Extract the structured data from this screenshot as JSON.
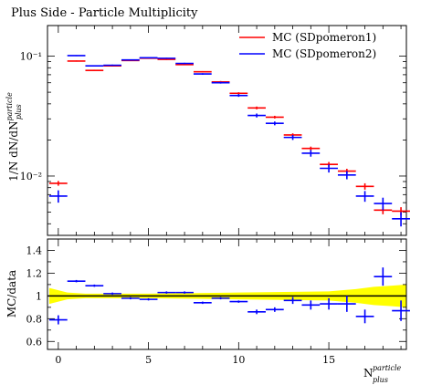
{
  "chart_data": [
    {
      "type": "scatter",
      "title": "Plus Side - Particle Multiplicity",
      "ylabel": "1/N dN/dN",
      "ylabel_sup": "particle",
      "ylabel_sub": "plus",
      "yscale": "log",
      "ylim": [
        0.0032,
        0.18
      ],
      "xlim": [
        -0.6,
        19.3
      ],
      "y_tick_labels": [
        {
          "value": 0.1,
          "label": "10⁻¹"
        },
        {
          "value": 0.01,
          "label": "10⁻²"
        }
      ],
      "legend_position": "top-right",
      "series": [
        {
          "name": "MC (SDpomeron1)",
          "color": "#ff0000",
          "x": [
            0,
            1,
            2,
            3,
            4,
            5,
            6,
            7,
            8,
            9,
            10,
            11,
            12,
            13,
            14,
            15,
            16,
            17,
            18,
            19
          ],
          "y": [
            0.0087,
            0.091,
            0.076,
            0.083,
            0.092,
            0.096,
            0.094,
            0.085,
            0.074,
            0.061,
            0.049,
            0.037,
            0.031,
            0.022,
            0.017,
            0.0125,
            0.011,
            0.0082,
            0.0052,
            0.0051
          ],
          "yerr": [
            0.0004,
            0.001,
            0.001,
            0.001,
            0.001,
            0.001,
            0.001,
            0.001,
            0.001,
            0.001,
            0.001,
            0.001,
            0.0008,
            0.0007,
            0.0006,
            0.0006,
            0.0005,
            0.0005,
            0.0004,
            0.0004
          ]
        },
        {
          "name": "MC (SDpomeron2)",
          "color": "#0000ff",
          "x": [
            0,
            1,
            2,
            3,
            4,
            5,
            6,
            7,
            8,
            9,
            10,
            11,
            12,
            13,
            14,
            15,
            16,
            17,
            18,
            19
          ],
          "y": [
            0.0068,
            0.101,
            0.083,
            0.084,
            0.093,
            0.097,
            0.096,
            0.087,
            0.071,
            0.06,
            0.047,
            0.032,
            0.0275,
            0.021,
            0.0155,
            0.0116,
            0.0102,
            0.0068,
            0.0059,
            0.0044
          ],
          "yerr": [
            0.0008,
            0.001,
            0.001,
            0.001,
            0.001,
            0.001,
            0.001,
            0.001,
            0.001,
            0.001,
            0.0012,
            0.0012,
            0.001,
            0.001,
            0.001,
            0.0009,
            0.0008,
            0.0007,
            0.0007,
            0.0006
          ]
        }
      ]
    },
    {
      "type": "scatter",
      "ylabel": "MC/data",
      "xlabel": "N",
      "xlabel_sup": "particle",
      "xlabel_sub": "plus",
      "ylim": [
        0.53,
        1.5
      ],
      "xlim": [
        -0.6,
        19.3
      ],
      "x_ticks": [
        0,
        5,
        10,
        15
      ],
      "y_ticks": [
        0.6,
        0.8,
        1,
        1.2,
        1.4
      ],
      "band": {
        "color": "#ffff00",
        "x": [
          -0.5,
          0.5,
          1.5,
          5,
          10,
          15,
          16.5,
          17.5,
          18.5,
          19.3
        ],
        "low": [
          0.93,
          0.97,
          0.98,
          0.98,
          0.97,
          0.96,
          0.94,
          0.92,
          0.91,
          0.9
        ],
        "high": [
          1.07,
          1.03,
          1.02,
          1.02,
          1.03,
          1.04,
          1.06,
          1.08,
          1.09,
          1.1
        ]
      },
      "series": [
        {
          "name": "MC (SDpomeron2)",
          "color": "#0000ff",
          "x": [
            0,
            1,
            2,
            3,
            4,
            5,
            6,
            7,
            8,
            9,
            10,
            11,
            12,
            13,
            14,
            15,
            16,
            17,
            18,
            19
          ],
          "y": [
            0.79,
            1.13,
            1.09,
            1.02,
            0.98,
            0.97,
            1.03,
            1.03,
            0.94,
            0.98,
            0.95,
            0.86,
            0.88,
            0.96,
            0.92,
            0.93,
            0.93,
            0.82,
            1.17,
            0.87
          ],
          "yerr": [
            0.04,
            0.01,
            0.01,
            0.01,
            0.01,
            0.01,
            0.01,
            0.01,
            0.01,
            0.01,
            0.01,
            0.02,
            0.02,
            0.03,
            0.04,
            0.05,
            0.07,
            0.06,
            0.08,
            0.09
          ]
        }
      ]
    }
  ]
}
